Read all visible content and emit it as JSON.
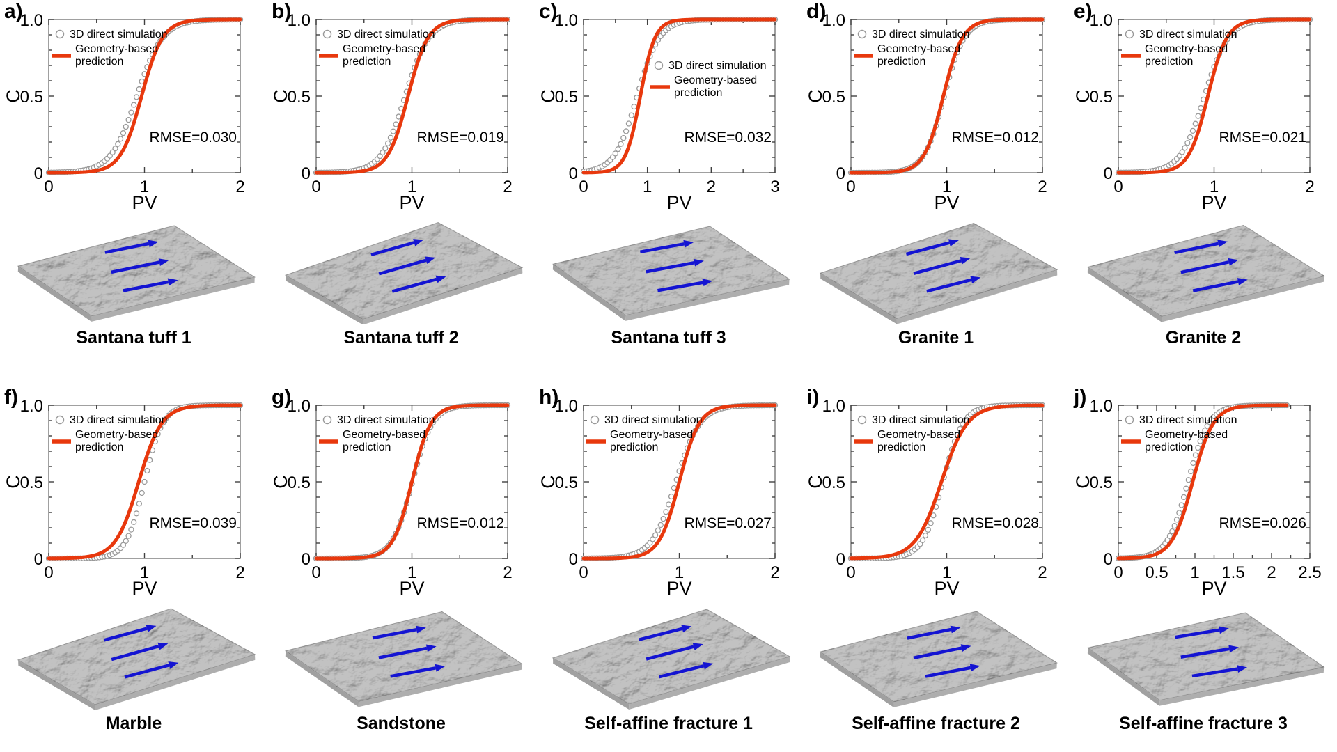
{
  "figure": {
    "description": "Ten-panel scientific figure comparing breakthrough curves (C vs PV) from 3D direct simulation and geometry-based prediction for rough fracture surfaces",
    "surface_note": "grayscale 3D rendered fracture surface with 3 blue flow-direction arrows under each chart"
  },
  "colors": {
    "prediction_red": "#e8380d",
    "simulation_gray": "#999999",
    "arrow_blue": "#1414d2",
    "frame_gray": "#808080",
    "tick_dark": "#404040",
    "text_black": "#000000",
    "surface_base": "#c2c2c2"
  },
  "chart_data": {
    "type": "line+scatter",
    "model": "logistic breakthrough curve: C(x) = 1/(1+exp(-(x-center)/width))",
    "xlabel": "PV",
    "ylabel": "C",
    "ylim": [
      0,
      1
    ],
    "yticks": [
      "0",
      "0.5",
      "1.0"
    ],
    "ytick_values": [
      0,
      0.5,
      1
    ],
    "y_minor_step": 0.1,
    "grid": false,
    "legend": {
      "sim_label": "3D direct simulation",
      "pred_label": "Geometry-based prediction",
      "pred_label_line1": "Geometry-based",
      "pred_label_line2": "prediction"
    },
    "panels": [
      {
        "id": "a",
        "letter": "a)",
        "caption": "Santana tuff 1",
        "rmse_text": "RMSE=0.030",
        "rmse_value": 0.03,
        "xlim": [
          0,
          2
        ],
        "xtick_values": [
          0,
          1,
          2
        ],
        "xtick_labels": [
          "0",
          "1",
          "2"
        ],
        "x_minor_step": 0.5,
        "legend_position": "top-left",
        "simulation": {
          "center": 0.92,
          "width": 0.135,
          "x_end": 2
        },
        "prediction": {
          "center": 0.97,
          "width": 0.11,
          "x_end": 2
        }
      },
      {
        "id": "b",
        "letter": "b)",
        "caption": "Santana tuff 2",
        "rmse_text": "RMSE=0.019",
        "rmse_value": 0.019,
        "xlim": [
          0,
          2
        ],
        "xtick_values": [
          0,
          1,
          2
        ],
        "xtick_labels": [
          "0",
          "1",
          "2"
        ],
        "x_minor_step": 0.5,
        "legend_position": "top-left",
        "simulation": {
          "center": 0.93,
          "width": 0.125,
          "x_end": 2
        },
        "prediction": {
          "center": 0.96,
          "width": 0.105,
          "x_end": 2
        }
      },
      {
        "id": "c",
        "letter": "c)",
        "caption": "Santana tuff 3",
        "rmse_text": "RMSE=0.032",
        "rmse_value": 0.032,
        "xlim": [
          0,
          3
        ],
        "xtick_values": [
          0,
          1,
          2,
          3
        ],
        "xtick_labels": [
          "0",
          "1",
          "2",
          "3"
        ],
        "x_minor_step": 0.5,
        "legend_position": "mid-right",
        "simulation": {
          "center": 0.84,
          "width": 0.175,
          "x_end": 3
        },
        "prediction": {
          "center": 0.89,
          "width": 0.115,
          "x_end": 3
        }
      },
      {
        "id": "d",
        "letter": "d)",
        "caption": "Granite 1",
        "rmse_text": "RMSE=0.012",
        "rmse_value": 0.012,
        "xlim": [
          0,
          2
        ],
        "xtick_values": [
          0,
          1,
          2
        ],
        "xtick_labels": [
          "0",
          "1",
          "2"
        ],
        "x_minor_step": 0.5,
        "legend_position": "top-left",
        "simulation": {
          "center": 0.975,
          "width": 0.105,
          "x_end": 2
        },
        "prediction": {
          "center": 0.965,
          "width": 0.1,
          "x_end": 2
        }
      },
      {
        "id": "e",
        "letter": "e)",
        "caption": "Granite 2",
        "rmse_text": "RMSE=0.021",
        "rmse_value": 0.021,
        "xlim": [
          0,
          2
        ],
        "xtick_values": [
          0,
          1,
          2
        ],
        "xtick_labels": [
          "0",
          "1",
          "2"
        ],
        "x_minor_step": 0.5,
        "legend_position": "top-left",
        "simulation": {
          "center": 0.9,
          "width": 0.125,
          "x_end": 2
        },
        "prediction": {
          "center": 0.935,
          "width": 0.1,
          "x_end": 2
        }
      },
      {
        "id": "f",
        "letter": "f)",
        "caption": "Marble",
        "rmse_text": "RMSE=0.039",
        "rmse_value": 0.039,
        "xlim": [
          0,
          2
        ],
        "xtick_values": [
          0,
          1,
          2
        ],
        "xtick_labels": [
          "0",
          "1",
          "2"
        ],
        "x_minor_step": 0.5,
        "legend_position": "top-left",
        "simulation": {
          "center": 1.0,
          "width": 0.095,
          "x_end": 2
        },
        "prediction": {
          "center": 0.94,
          "width": 0.12,
          "x_end": 2
        }
      },
      {
        "id": "g",
        "letter": "g)",
        "caption": "Sandstone",
        "rmse_text": "RMSE=0.012",
        "rmse_value": 0.012,
        "xlim": [
          0,
          2
        ],
        "xtick_values": [
          0,
          1,
          2
        ],
        "xtick_labels": [
          "0",
          "1",
          "2"
        ],
        "x_minor_step": 0.5,
        "legend_position": "top-left",
        "simulation": {
          "center": 1.005,
          "width": 0.105,
          "x_end": 2
        },
        "prediction": {
          "center": 1.0,
          "width": 0.1,
          "x_end": 2
        }
      },
      {
        "id": "h",
        "letter": "h)",
        "caption": "Self-affine fracture 1",
        "rmse_text": "RMSE=0.027",
        "rmse_value": 0.027,
        "xlim": [
          0,
          2
        ],
        "xtick_values": [
          0,
          1,
          2
        ],
        "xtick_labels": [
          "0",
          "1",
          "2"
        ],
        "x_minor_step": 0.5,
        "legend_position": "top-left",
        "simulation": {
          "center": 0.965,
          "width": 0.125,
          "x_end": 2
        },
        "prediction": {
          "center": 1.0,
          "width": 0.105,
          "x_end": 2
        }
      },
      {
        "id": "i",
        "letter": "i)",
        "caption": "Self-affine fracture 2",
        "rmse_text": "RMSE=0.028",
        "rmse_value": 0.028,
        "xlim": [
          0,
          2
        ],
        "xtick_values": [
          0,
          1,
          2
        ],
        "xtick_labels": [
          "0",
          "1",
          "2"
        ],
        "x_minor_step": 0.5,
        "legend_position": "top-left",
        "simulation": {
          "center": 0.96,
          "width": 0.105,
          "x_end": 2
        },
        "prediction": {
          "center": 0.945,
          "width": 0.135,
          "x_end": 2
        }
      },
      {
        "id": "j",
        "letter": "j)",
        "caption": "Self-affine fracture 3",
        "rmse_text": "RMSE=0.026",
        "rmse_value": 0.026,
        "xlim": [
          0,
          2.5
        ],
        "xtick_values": [
          0,
          0.5,
          1,
          1.5,
          2,
          2.5
        ],
        "xtick_labels": [
          "0",
          "0.5",
          "1",
          "1.5",
          "2",
          "2.5"
        ],
        "x_minor_step": 0.25,
        "legend_position": "top-left",
        "simulation": {
          "center": 0.91,
          "width": 0.135,
          "x_end": 2.2
        },
        "prediction": {
          "center": 0.97,
          "width": 0.135,
          "x_end": 2.2
        }
      }
    ]
  }
}
